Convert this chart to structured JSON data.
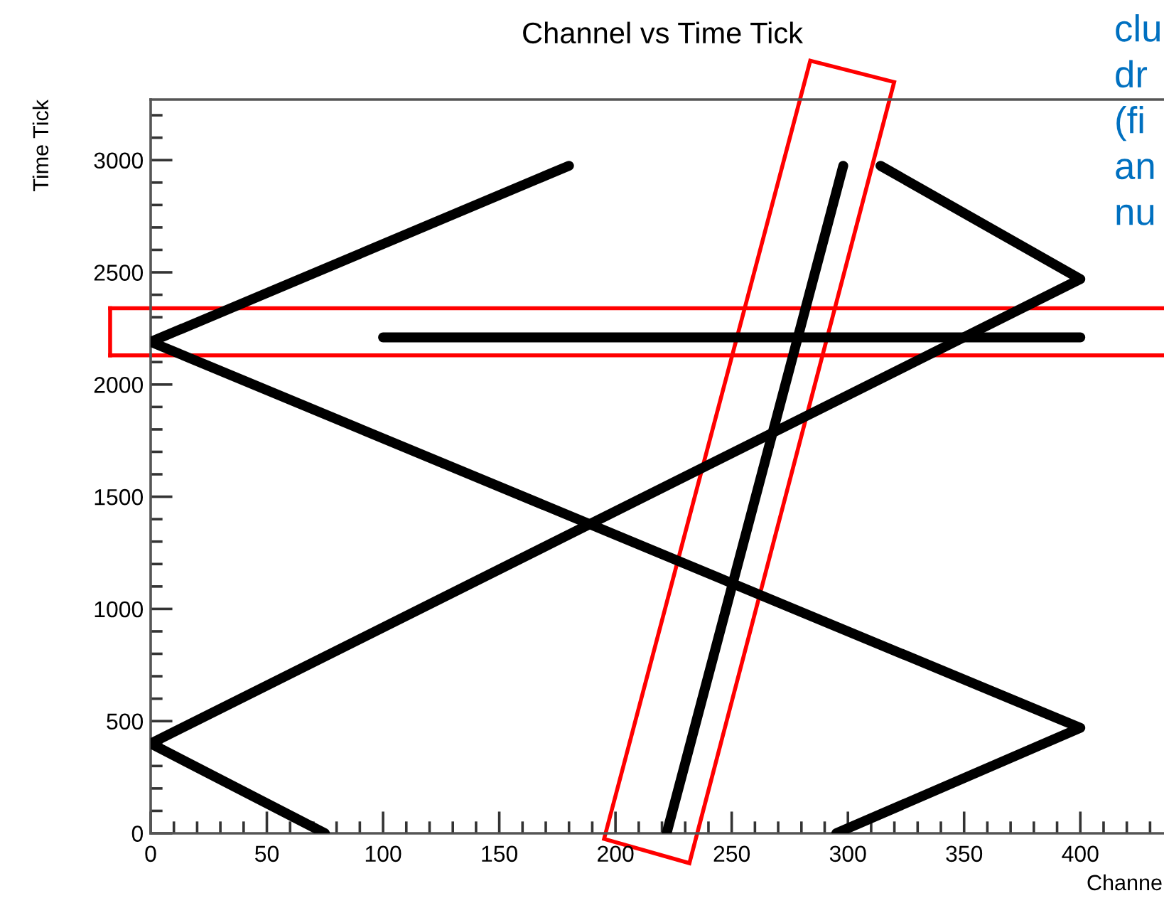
{
  "chart_data": {
    "type": "line",
    "title": "Channel vs Time Tick",
    "xlabel": "Channe",
    "ylabel": "Time Tick",
    "annotations": [
      "clu\ndr\n(fi\nan\nnu"
    ],
    "series": [
      {
        "color": "#000000",
        "x": [
          75,
          0,
          400,
          314
        ],
        "values": [
          0,
          400,
          2470,
          2975
        ]
      },
      {
        "color": "#000000",
        "x": [
          180,
          0,
          400,
          295
        ],
        "values": [
          2975,
          2190,
          470,
          0
        ]
      },
      {
        "color": "#000000",
        "x": [
          100,
          400
        ],
        "values": [
          2210,
          2210
        ]
      },
      {
        "color": "#000000",
        "x": [
          222,
          298
        ],
        "values": [
          0,
          2975
        ]
      }
    ],
    "ref_lines": [
      {
        "axis": "y",
        "value": 2130,
        "color": "#ff0000"
      },
      {
        "axis": "y",
        "value": 2340,
        "color": "#ff0000"
      }
    ],
    "xlim": [
      0,
      436
    ],
    "xticks": [
      0,
      50,
      100,
      150,
      200,
      250,
      300,
      350,
      400
    ],
    "ylim": [
      0,
      3270
    ],
    "yticks": [
      0,
      500,
      1000,
      1500,
      2000,
      2500,
      3000
    ],
    "grid": false,
    "marker": "none",
    "line_style": "solid"
  }
}
